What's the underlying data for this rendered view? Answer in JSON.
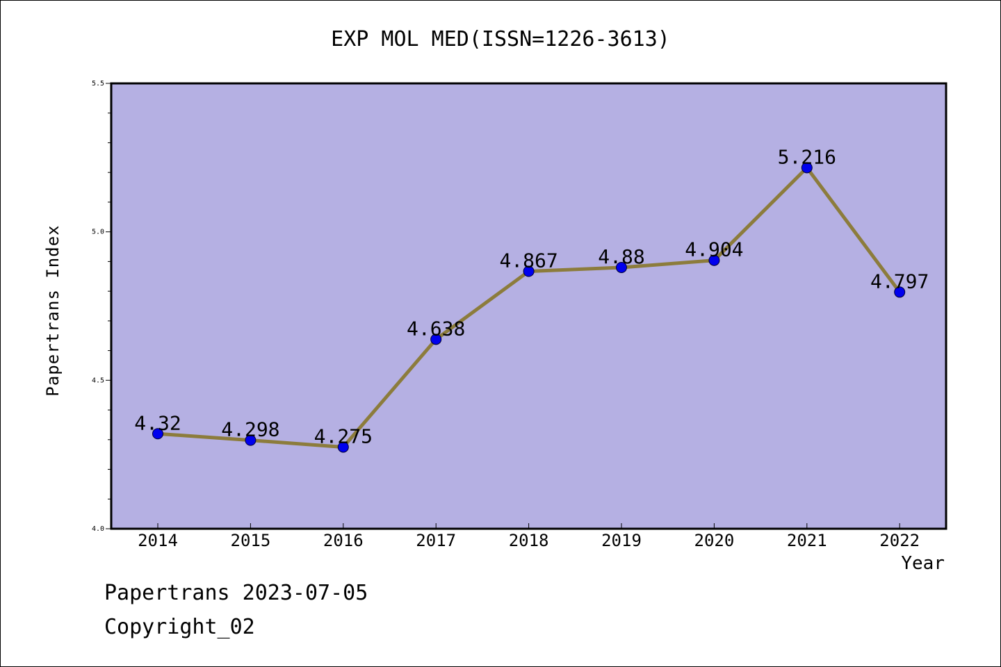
{
  "chart_data": {
    "type": "line",
    "title": "EXP MOL MED(ISSN=1226-3613)",
    "xlabel": "Year",
    "ylabel": "Papertrans Index",
    "x": [
      "2014",
      "2015",
      "2016",
      "2017",
      "2018",
      "2019",
      "2020",
      "2021",
      "2022"
    ],
    "series": [
      {
        "values": [
          4.32,
          4.298,
          4.275,
          4.638,
          4.867,
          4.88,
          4.904,
          5.216,
          4.797
        ],
        "labels": [
          "4.32",
          "4.298",
          "4.275",
          "4.638",
          "4.867",
          "4.88",
          "4.904",
          "5.216",
          "4.797"
        ]
      }
    ],
    "ylim": [
      4.0,
      5.5
    ],
    "yticks": [
      "4.0",
      "4.5",
      "5.0",
      "5.5"
    ],
    "grid": false,
    "colors": {
      "plot_background": "#b5b0e3",
      "line": "#8c7c3c",
      "marker": "#0000ee"
    }
  },
  "footer": {
    "date_text": "Papertrans 2023-07-05",
    "copyright_text": "Copyright_02"
  }
}
